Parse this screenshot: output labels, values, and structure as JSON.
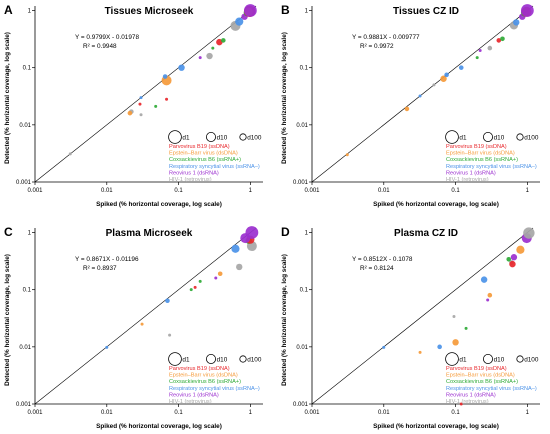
{
  "figure": {
    "xlabel": "Spiked (% horizontal coverage, log scale)",
    "ylabel": "Detected (% horizontal coverage, log scale)",
    "x_ticks": [
      "0.001",
      "0.01",
      "0.1",
      "1"
    ],
    "y_ticks": [
      "0.001",
      "0.01",
      "0.1",
      "1"
    ],
    "size_legend": [
      "d1",
      "d10",
      "d100"
    ],
    "legend": [
      {
        "label": "Parvovirus B19 (ssDNA)",
        "color": "#e8262b"
      },
      {
        "label": "Epstein–Barr virus (dsDNA)",
        "color": "#f59a3a"
      },
      {
        "label": "Coxsackievirus B6 (ssRNA+)",
        "color": "#2eaa36"
      },
      {
        "label": "Respiratory syncytial virus (ssRNA–)",
        "color": "#4b92e8"
      },
      {
        "label": "Reovirus 1 (dsRNA)",
        "color": "#9b2fcf"
      },
      {
        "label": "HIV-1 (retrovirus)",
        "color": "#a6a6a6"
      }
    ]
  },
  "chart_data": [
    {
      "type": "scatter",
      "panel": "A",
      "title": "Tissues Microseek",
      "xlabel": "Spiked (% horizontal coverage, log scale)",
      "ylabel": "Detected (% horizontal coverage, log scale)",
      "xlim": [
        0.001,
        1.5
      ],
      "ylim": [
        0.001,
        1.2
      ],
      "log_scale": true,
      "equation": "Y = 0.9799X - 0.01978",
      "r2": "R² = 0.9948",
      "points": [
        {
          "virus": 5,
          "x": 0.0031,
          "y": 0.0031,
          "size": 1
        },
        {
          "virus": 5,
          "x": 0.022,
          "y": 0.017,
          "size": 2
        },
        {
          "virus": 0,
          "x": 0.029,
          "y": 0.023,
          "size": 1
        },
        {
          "virus": 3,
          "x": 0.03,
          "y": 0.03,
          "size": 1
        },
        {
          "virus": 1,
          "x": 0.021,
          "y": 0.016,
          "size": 2
        },
        {
          "virus": 2,
          "x": 0.048,
          "y": 0.021,
          "size": 1
        },
        {
          "virus": 5,
          "x": 0.03,
          "y": 0.015,
          "size": 1
        },
        {
          "virus": 0,
          "x": 0.068,
          "y": 0.028,
          "size": 1
        },
        {
          "virus": 1,
          "x": 0.068,
          "y": 0.06,
          "size": 5
        },
        {
          "virus": 3,
          "x": 0.065,
          "y": 0.07,
          "size": 2
        },
        {
          "virus": 3,
          "x": 0.11,
          "y": 0.1,
          "size": 3
        },
        {
          "virus": 4,
          "x": 0.2,
          "y": 0.15,
          "size": 1
        },
        {
          "virus": 5,
          "x": 0.27,
          "y": 0.16,
          "size": 3
        },
        {
          "virus": 2,
          "x": 0.3,
          "y": 0.22,
          "size": 1
        },
        {
          "virus": 0,
          "x": 0.37,
          "y": 0.28,
          "size": 3
        },
        {
          "virus": 2,
          "x": 0.42,
          "y": 0.3,
          "size": 2
        },
        {
          "virus": 5,
          "x": 0.62,
          "y": 0.54,
          "size": 5
        },
        {
          "virus": 3,
          "x": 0.7,
          "y": 0.64,
          "size": 4
        },
        {
          "virus": 4,
          "x": 0.83,
          "y": 0.78,
          "size": 3
        },
        {
          "virus": 2,
          "x": 0.92,
          "y": 0.93,
          "size": 4
        },
        {
          "virus": 0,
          "x": 0.98,
          "y": 0.97,
          "size": 6
        },
        {
          "virus": 1,
          "x": 0.95,
          "y": 0.95,
          "size": 4
        },
        {
          "virus": 4,
          "x": 1.0,
          "y": 1.0,
          "size": 7
        }
      ]
    },
    {
      "type": "scatter",
      "panel": "B",
      "title": "Tissues CZ ID",
      "xlabel": "Spiked (% horizontal coverage, log scale)",
      "ylabel": "Detected (% horizontal coverage, log scale)",
      "xlim": [
        0.001,
        1.5
      ],
      "ylim": [
        0.001,
        1.2
      ],
      "log_scale": true,
      "equation": "Y = 0.9881X - 0.009777",
      "r2": "R² = 0.9972",
      "points": [
        {
          "virus": 1,
          "x": 0.0031,
          "y": 0.003,
          "size": 1
        },
        {
          "virus": 1,
          "x": 0.021,
          "y": 0.019,
          "size": 2
        },
        {
          "virus": 3,
          "x": 0.032,
          "y": 0.032,
          "size": 1
        },
        {
          "virus": 5,
          "x": 0.05,
          "y": 0.05,
          "size": 1
        },
        {
          "virus": 1,
          "x": 0.068,
          "y": 0.064,
          "size": 3
        },
        {
          "virus": 3,
          "x": 0.075,
          "y": 0.075,
          "size": 2
        },
        {
          "virus": 3,
          "x": 0.12,
          "y": 0.1,
          "size": 2
        },
        {
          "virus": 2,
          "x": 0.2,
          "y": 0.15,
          "size": 1
        },
        {
          "virus": 4,
          "x": 0.22,
          "y": 0.2,
          "size": 1
        },
        {
          "virus": 5,
          "x": 0.3,
          "y": 0.22,
          "size": 2
        },
        {
          "virus": 0,
          "x": 0.4,
          "y": 0.3,
          "size": 2
        },
        {
          "virus": 2,
          "x": 0.45,
          "y": 0.32,
          "size": 2
        },
        {
          "virus": 5,
          "x": 0.65,
          "y": 0.55,
          "size": 4
        },
        {
          "virus": 3,
          "x": 0.7,
          "y": 0.62,
          "size": 3
        },
        {
          "virus": 4,
          "x": 0.85,
          "y": 0.78,
          "size": 3
        },
        {
          "virus": 2,
          "x": 0.93,
          "y": 0.92,
          "size": 4
        },
        {
          "virus": 0,
          "x": 0.97,
          "y": 0.95,
          "size": 5
        },
        {
          "virus": 4,
          "x": 1.0,
          "y": 1.0,
          "size": 7
        }
      ]
    },
    {
      "type": "scatter",
      "panel": "C",
      "title": "Plasma Microseek",
      "xlabel": "Spiked (% horizontal coverage, log scale)",
      "ylabel": "Detected (% horizontal coverage, log scale)",
      "xlim": [
        0.001,
        1.5
      ],
      "ylim": [
        0.001,
        1.2
      ],
      "log_scale": true,
      "equation": "Y = 0.8671X - 0.01196",
      "r2": "R² = 0.8937",
      "points": [
        {
          "virus": 3,
          "x": 0.01,
          "y": 0.0098,
          "size": 1
        },
        {
          "virus": 1,
          "x": 0.031,
          "y": 0.025,
          "size": 1
        },
        {
          "virus": 5,
          "x": 0.075,
          "y": 0.016,
          "size": 1
        },
        {
          "virus": 3,
          "x": 0.07,
          "y": 0.064,
          "size": 2
        },
        {
          "virus": 2,
          "x": 0.15,
          "y": 0.1,
          "size": 1
        },
        {
          "virus": 0,
          "x": 0.17,
          "y": 0.11,
          "size": 1
        },
        {
          "virus": 2,
          "x": 0.2,
          "y": 0.14,
          "size": 1
        },
        {
          "virus": 4,
          "x": 0.33,
          "y": 0.16,
          "size": 1
        },
        {
          "virus": 1,
          "x": 0.38,
          "y": 0.19,
          "size": 2
        },
        {
          "virus": 5,
          "x": 0.7,
          "y": 0.25,
          "size": 3
        },
        {
          "virus": 3,
          "x": 0.62,
          "y": 0.52,
          "size": 4
        },
        {
          "virus": 5,
          "x": 1.05,
          "y": 0.58,
          "size": 5
        },
        {
          "virus": 2,
          "x": 0.95,
          "y": 0.72,
          "size": 3
        },
        {
          "virus": 0,
          "x": 1.0,
          "y": 0.75,
          "size": 4
        },
        {
          "virus": 4,
          "x": 0.85,
          "y": 0.8,
          "size": 5
        },
        {
          "virus": 4,
          "x": 1.05,
          "y": 1.0,
          "size": 7
        }
      ]
    },
    {
      "type": "scatter",
      "panel": "D",
      "title": "Plasma CZ ID",
      "xlabel": "Spiked (% horizontal coverage, log scale)",
      "ylabel": "Detected (% horizontal coverage, log scale)",
      "xlim": [
        0.001,
        1.5
      ],
      "ylim": [
        0.001,
        1.2
      ],
      "log_scale": true,
      "equation": "Y = 0.8512X - 0.1078",
      "r2": "R² = 0.8124",
      "points": [
        {
          "virus": 3,
          "x": 0.01,
          "y": 0.0098,
          "size": 1
        },
        {
          "virus": 1,
          "x": 0.032,
          "y": 0.008,
          "size": 1
        },
        {
          "virus": 3,
          "x": 0.06,
          "y": 0.01,
          "size": 2
        },
        {
          "virus": 1,
          "x": 0.1,
          "y": 0.012,
          "size": 3
        },
        {
          "virus": 0,
          "x": 0.12,
          "y": 0.001,
          "size": 1
        },
        {
          "virus": 2,
          "x": 0.14,
          "y": 0.021,
          "size": 1
        },
        {
          "virus": 5,
          "x": 0.095,
          "y": 0.034,
          "size": 1
        },
        {
          "virus": 4,
          "x": 0.28,
          "y": 0.066,
          "size": 1
        },
        {
          "virus": 1,
          "x": 0.3,
          "y": 0.08,
          "size": 2
        },
        {
          "virus": 3,
          "x": 0.25,
          "y": 0.15,
          "size": 3
        },
        {
          "virus": 5,
          "x": 0.6,
          "y": 0.3,
          "size": 2
        },
        {
          "virus": 2,
          "x": 0.55,
          "y": 0.34,
          "size": 2
        },
        {
          "virus": 4,
          "x": 0.65,
          "y": 0.37,
          "size": 3
        },
        {
          "virus": 0,
          "x": 0.62,
          "y": 0.28,
          "size": 3
        },
        {
          "virus": 1,
          "x": 0.8,
          "y": 0.5,
          "size": 4
        },
        {
          "virus": 4,
          "x": 0.98,
          "y": 0.8,
          "size": 5
        },
        {
          "virus": 5,
          "x": 1.05,
          "y": 0.98,
          "size": 6
        }
      ]
    }
  ]
}
